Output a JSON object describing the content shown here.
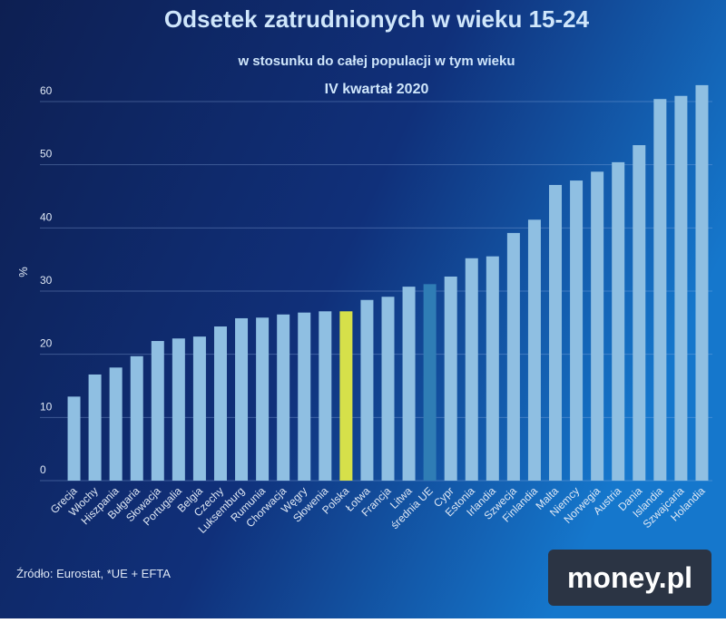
{
  "chart_data": {
    "type": "bar",
    "title": "Odsetek zatrudnionych w wieku 15-24",
    "subtitle": "w stosunku do całej populacji w tym wieku",
    "subtitle2": "IV kwartał 2020",
    "ylabel": "%",
    "source": "Źródło: Eurostat, *UE + EFTA",
    "logo": "money.pl",
    "categories": [
      "Grecja",
      "Włochy",
      "Hiszpania",
      "Bułgaria",
      "Słowacja",
      "Portugalia",
      "Belgia",
      "Czechy",
      "Luksemburg",
      "Rumunia",
      "Chorwacja",
      "Węgry",
      "Słowenia",
      "Polska",
      "Łotwa",
      "Francja",
      "Litwa",
      "średnia UE",
      "Cypr",
      "Estonia",
      "Irlandia",
      "Szwecja",
      "Finlandia",
      "Malta",
      "Niemcy",
      "Norwegia",
      "Austria",
      "Dania",
      "Islandia",
      "Szwajcaria",
      "Holandia"
    ],
    "values": [
      13.3,
      16.8,
      17.9,
      19.7,
      22.1,
      22.5,
      22.8,
      24.4,
      25.7,
      25.8,
      26.3,
      26.6,
      26.8,
      26.8,
      28.6,
      29.1,
      30.7,
      31.1,
      32.3,
      35.2,
      35.5,
      39.2,
      41.3,
      46.8,
      47.5,
      48.9,
      50.4,
      53.1,
      60.4,
      60.9,
      62.6
    ],
    "colors": [
      "#8fbfe2",
      "#8fbfe2",
      "#8fbfe2",
      "#8fbfe2",
      "#8fbfe2",
      "#8fbfe2",
      "#8fbfe2",
      "#8fbfe2",
      "#8fbfe2",
      "#8fbfe2",
      "#8fbfe2",
      "#8fbfe2",
      "#8fbfe2",
      "#d6e04a",
      "#8fbfe2",
      "#8fbfe2",
      "#8fbfe2",
      "#2f7db5",
      "#8fbfe2",
      "#8fbfe2",
      "#8fbfe2",
      "#8fbfe2",
      "#8fbfe2",
      "#8fbfe2",
      "#8fbfe2",
      "#8fbfe2",
      "#8fbfe2",
      "#8fbfe2",
      "#8fbfe2",
      "#8fbfe2",
      "#8fbfe2"
    ],
    "ylim": [
      0,
      60
    ],
    "yticks": [
      0,
      10,
      20,
      30,
      40,
      50,
      60
    ],
    "grid": true
  }
}
